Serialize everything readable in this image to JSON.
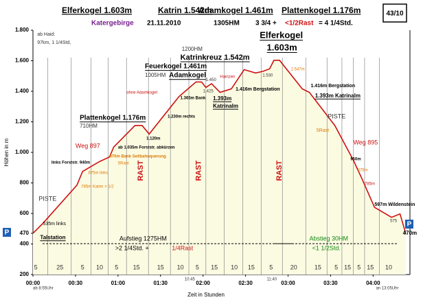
{
  "header": {
    "peaks": [
      "Elferkogel 1.603m",
      "Katrin 1.542m",
      "Adamkogel 1.461m",
      "Plattenkogel 1.176m"
    ],
    "number": "43/10",
    "region": "Katergebirge",
    "date": "21.11.2010",
    "ascent": "1305HM",
    "time_a": "3 3/4 +",
    "time_rest": "<1/2Rast",
    "time_b": "= 4 1/4Std."
  },
  "chart_data": {
    "type": "line",
    "xlabel": "Zeit in Stunden",
    "ylabel": "Höhen in m",
    "parking": "P",
    "xlim": [
      0,
      266
    ],
    "ylim": [
      200,
      1800
    ],
    "grid": false,
    "xticks": [
      {
        "value": 0,
        "label": "00:00"
      },
      {
        "value": 30,
        "label": "00:30"
      },
      {
        "value": 60,
        "label": "01:00"
      },
      {
        "value": 90,
        "label": "01:30"
      },
      {
        "value": 120,
        "label": "02:00"
      },
      {
        "value": 150,
        "label": "02:30"
      },
      {
        "value": 180,
        "label": "03:00"
      },
      {
        "value": 210,
        "label": "03:30"
      },
      {
        "value": 240,
        "label": "04:00"
      }
    ],
    "yticks": [
      200,
      400,
      470,
      600,
      800,
      {
        "value": 1000,
        "label": "1.000"
      },
      {
        "value": 1200,
        "label": "1.200"
      },
      {
        "value": 1400,
        "label": "1.400"
      },
      {
        "value": 1600,
        "label": "1.600"
      },
      {
        "value": 1800,
        "label": "1.800"
      }
    ],
    "series": [
      {
        "color": "#cc1111",
        "fill": "#fbfbe2",
        "x": [
          0,
          7,
          31,
          35,
          47,
          54,
          57,
          72,
          77,
          82,
          103,
          115,
          119,
          122,
          126,
          132,
          140,
          149,
          157,
          162,
          167,
          170,
          174,
          190,
          195,
          213,
          226,
          232,
          241,
          253,
          259,
          263
        ],
        "values": [
          470,
          535,
          785,
          875,
          940,
          970,
          1035,
          1176,
          1176,
          1120,
          1365,
          1461,
          1461,
          1425,
          1450,
          1393,
          1416,
          1542,
          1520,
          1530,
          1547,
          1603,
          1603,
          1416,
          1393,
          1176,
          950,
          830,
          640,
          575,
          597,
          470
        ]
      }
    ],
    "durations": [
      {
        "x": 2,
        "label": 5
      },
      {
        "x": 19,
        "label": 25
      },
      {
        "x": 35,
        "label": 5
      },
      {
        "x": 47,
        "label": 10
      },
      {
        "x": 59,
        "label": 5
      },
      {
        "x": 73,
        "label": 15
      },
      {
        "x": 90,
        "label": 15
      },
      {
        "x": 104,
        "label": 10
      },
      {
        "x": 116,
        "label": 5
      },
      {
        "x": 128,
        "label": 15
      },
      {
        "x": 142,
        "label": 10
      },
      {
        "x": 154,
        "label": 15
      },
      {
        "x": 168,
        "label": 5
      },
      {
        "x": 184,
        "label": 20
      },
      {
        "x": 201,
        "label": 15
      },
      {
        "x": 214,
        "label": 5
      },
      {
        "x": 222,
        "label": 15
      },
      {
        "x": 230,
        "label": 5
      },
      {
        "x": 238,
        "label": 15
      },
      {
        "x": 251,
        "label": 10
      }
    ],
    "annotations": [
      {
        "text": "ab Haid:",
        "x": 3,
        "y": 1773,
        "color": "#333",
        "weight": "normal",
        "size": 7
      },
      {
        "text": "97km, 1 1/4Std,",
        "x": 3,
        "y": 1719,
        "color": "#333",
        "weight": "normal",
        "size": 7
      },
      {
        "text": "PISTE",
        "x": 4,
        "y": 694,
        "color": "#333",
        "weight": "normal",
        "size": 9
      },
      {
        "text": "535m links",
        "x": 7,
        "y": 533,
        "color": "#000",
        "weight": "normal",
        "size": 7
      },
      {
        "text": "Talstation",
        "x": 5,
        "y": 440,
        "color": "#000",
        "weight": "bold",
        "size": 8,
        "underline": true
      },
      {
        "text": "Weg 897",
        "x": 30,
        "y": 1040,
        "color": "#cc1111",
        "weight": "normal",
        "size": 9
      },
      {
        "text": "links Forststr. 940m",
        "x": 13,
        "y": 932,
        "color": "#000",
        "weight": "bold",
        "size": 6
      },
      {
        "text": "875m links",
        "x": 39,
        "y": 865,
        "color": "#e07800",
        "weight": "normal",
        "size": 6
      },
      {
        "text": "785m Katrin > 1/2",
        "x": 34,
        "y": 775,
        "color": "#e07800",
        "weight": "normal",
        "size": 6
      },
      {
        "text": "ab 1.035m Forststr. abkürzen",
        "x": 60,
        "y": 1031,
        "color": "#000",
        "weight": "bold",
        "size": 6
      },
      {
        "text": "970m Bank Seilbahnquerung",
        "x": 54,
        "y": 973,
        "color": "#e07800",
        "weight": "bold",
        "size": 6
      },
      {
        "text": "5Rast",
        "x": 60,
        "y": 928,
        "color": "#e07800",
        "weight": "normal",
        "size": 6
      },
      {
        "text": "Plattenkogel 1.176m",
        "x": 33,
        "y": 1225,
        "color": "#000",
        "weight": "bold",
        "size": 10,
        "underline": true
      },
      {
        "text": "710HM",
        "x": 33,
        "y": 1171,
        "color": "#333",
        "weight": "normal",
        "size": 8
      },
      {
        "text": "1.120m",
        "x": 80,
        "y": 1090,
        "color": "#000",
        "weight": "bold",
        "size": 6
      },
      {
        "text": "1.230m rechts",
        "x": 95,
        "y": 1234,
        "color": "#000",
        "weight": "bold",
        "size": 6
      },
      {
        "text": "Feuerkogel 1.461m",
        "x": 79,
        "y": 1562,
        "color": "#000",
        "weight": "bold",
        "size": 10,
        "underline": true
      },
      {
        "text": "1005HM",
        "x": 79,
        "y": 1503,
        "color": "#333",
        "weight": "normal",
        "size": 8
      },
      {
        "text": "Adamkogel",
        "x": 96,
        "y": 1503,
        "color": "#000",
        "weight": "bold",
        "size": 10,
        "underline": true
      },
      {
        "text": "ohne Adamkogel",
        "x": 66,
        "y": 1391,
        "color": "#cc1111",
        "weight": "normal",
        "size": 6
      },
      {
        "text": "1.365m Bank",
        "x": 104,
        "y": 1355,
        "color": "#000",
        "weight": "bold",
        "size": 6
      },
      {
        "text": "1200HM",
        "x": 105,
        "y": 1674,
        "color": "#333",
        "weight": "normal",
        "size": 8
      },
      {
        "text": "Katrinkreuz 1.542m",
        "x": 104,
        "y": 1620,
        "color": "#000",
        "weight": "bold",
        "size": 11,
        "underline": true
      },
      {
        "text": "1.450",
        "x": 122,
        "y": 1475,
        "color": "#333",
        "weight": "normal",
        "size": 6
      },
      {
        "text": "1.425",
        "x": 120,
        "y": 1400,
        "color": "#333",
        "weight": "normal",
        "size": 6
      },
      {
        "text": "Hainzen",
        "x": 132,
        "y": 1494,
        "color": "#cc1111",
        "weight": "normal",
        "size": 6
      },
      {
        "text": "1.416m Bergstation",
        "x": 143,
        "y": 1413,
        "color": "#000",
        "weight": "bold",
        "size": 7
      },
      {
        "text": "1.393m",
        "x": 127,
        "y": 1350,
        "color": "#000",
        "weight": "bold",
        "size": 8,
        "underline": true
      },
      {
        "text": "Katrinalm",
        "x": 127,
        "y": 1301,
        "color": "#000",
        "weight": "bold",
        "size": 8,
        "underline": true
      },
      {
        "text": "1.530",
        "x": 162,
        "y": 1503,
        "color": "#333",
        "weight": "normal",
        "size": 6
      },
      {
        "text": "Elferkogel",
        "x": 160,
        "y": 1764,
        "color": "#000",
        "weight": "bold",
        "size": 13,
        "underline": true
      },
      {
        "text": "1.603m",
        "x": 165,
        "y": 1683,
        "color": "#000",
        "weight": "bold",
        "size": 13,
        "underline": true
      },
      {
        "text": "1.547m",
        "x": 182,
        "y": 1544,
        "color": "#e07800",
        "weight": "normal",
        "size": 6
      },
      {
        "text": "1.416m Bergstation",
        "x": 196,
        "y": 1436,
        "color": "#000",
        "weight": "bold",
        "size": 7
      },
      {
        "text": "1.393m Katrinalm",
        "x": 199,
        "y": 1368,
        "color": "#000",
        "weight": "bold",
        "size": 8,
        "underline": true
      },
      {
        "text": "PISTE",
        "x": 208,
        "y": 1234,
        "color": "#333",
        "weight": "normal",
        "size": 9
      },
      {
        "text": "5Rast",
        "x": 200,
        "y": 1144,
        "color": "#e07800",
        "weight": "normal",
        "size": 7
      },
      {
        "text": "Weg 895",
        "x": 226,
        "y": 1063,
        "color": "#cc1111",
        "weight": "normal",
        "size": 9
      },
      {
        "text": "950m",
        "x": 224,
        "y": 955,
        "color": "#000",
        "weight": "bold",
        "size": 6
      },
      {
        "text": "875m",
        "x": 229,
        "y": 883,
        "color": "#e07800",
        "weight": "normal",
        "size": 6
      },
      {
        "text": "785m",
        "x": 234,
        "y": 793,
        "color": "#cc1111",
        "weight": "normal",
        "size": 6
      },
      {
        "text": "597m Wildenstein",
        "x": 241,
        "y": 658,
        "color": "#000",
        "weight": "bold",
        "size": 7
      },
      {
        "text": "575",
        "x": 252,
        "y": 551,
        "color": "#333",
        "weight": "normal",
        "size": 6
      },
      {
        "text": "470m",
        "x": 261,
        "y": 470,
        "color": "#000",
        "weight": "bold",
        "size": 8
      },
      {
        "text": "Aufstieg 1275HM",
        "x": 61,
        "y": 434,
        "color": "#000",
        "weight": "normal",
        "size": 9
      },
      {
        "text": ">2 1/4Std. +",
        "x": 58,
        "y": 371,
        "color": "#000",
        "weight": "normal",
        "size": 9
      },
      {
        "text": "1/4Rast",
        "x": 98,
        "y": 371,
        "color": "#cc1111",
        "weight": "normal",
        "size": 9
      },
      {
        "text": "Abstieg 30HM",
        "x": 195,
        "y": 434,
        "color": "#118811",
        "weight": "normal",
        "size": 9
      },
      {
        "text": "<1 1/2Std.",
        "x": 197,
        "y": 371,
        "color": "#118811",
        "weight": "normal",
        "size": 9
      },
      {
        "text": "ab 8:55Uhr",
        "x": 0,
        "y": 110,
        "color": "#333",
        "weight": "normal",
        "size": 6
      },
      {
        "text": "10:45",
        "x": 107,
        "y": 170,
        "color": "#333",
        "weight": "normal",
        "size": 6
      },
      {
        "text": "11:40",
        "x": 165,
        "y": 170,
        "color": "#333",
        "weight": "normal",
        "size": 6
      },
      {
        "text": "an 13:05Uhr",
        "x": 242,
        "y": 110,
        "color": "#333",
        "weight": "normal",
        "size": 6
      },
      {
        "text": "RAST",
        "x": 76,
        "y": 880,
        "color": "#cc1111",
        "weight": "bold",
        "size": 11,
        "vertical": true
      },
      {
        "text": "RAST",
        "x": 117,
        "y": 880,
        "color": "#cc1111",
        "weight": "bold",
        "size": 11,
        "vertical": true
      },
      {
        "text": "RAST",
        "x": 174,
        "y": 880,
        "color": "#cc1111",
        "weight": "bold",
        "size": 11,
        "vertical": true
      }
    ]
  }
}
